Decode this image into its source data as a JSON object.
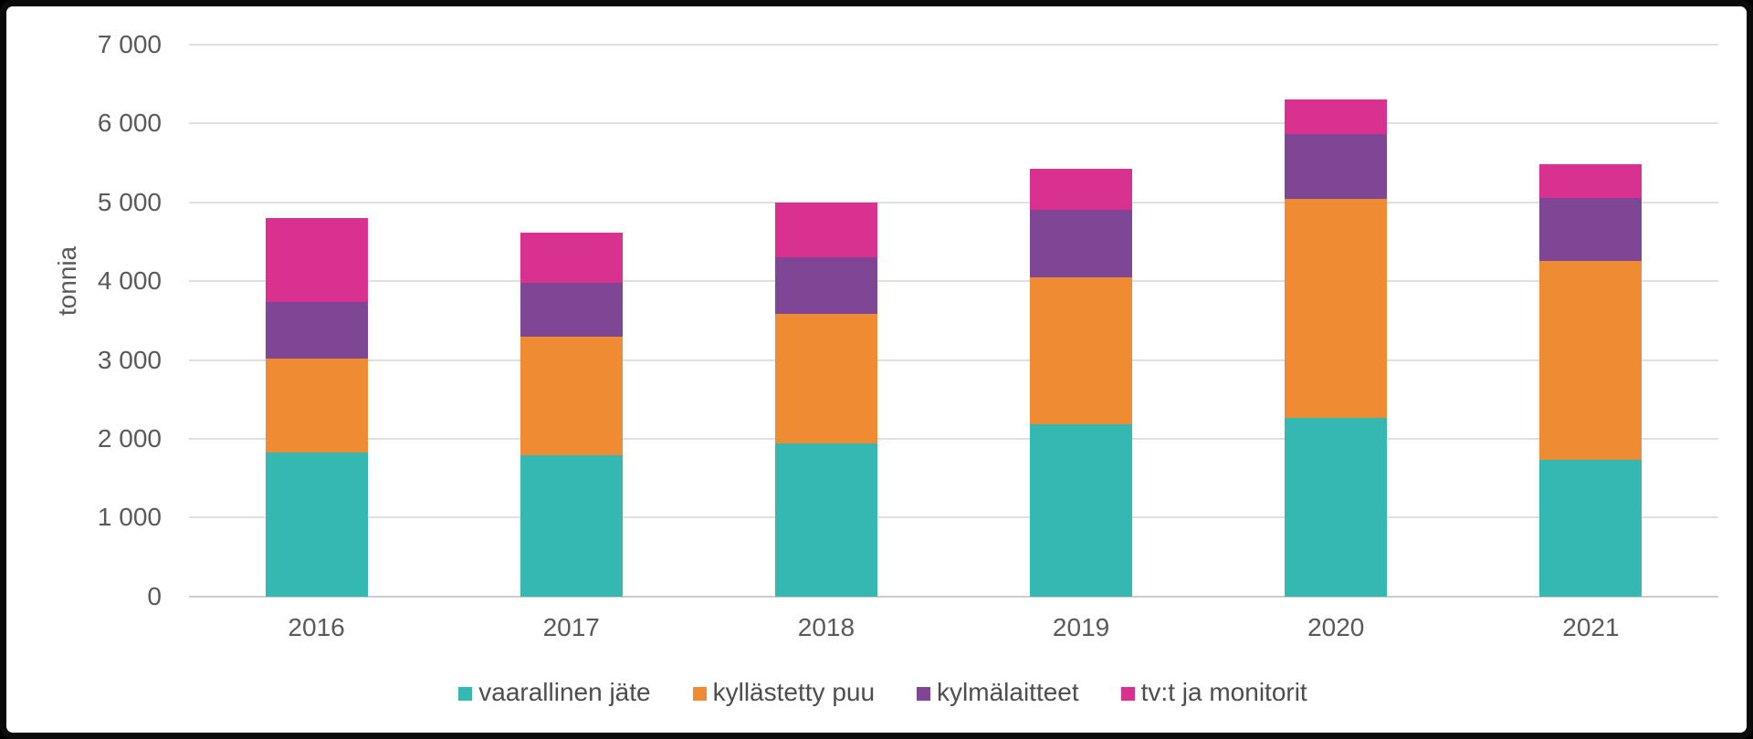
{
  "chart_data": {
    "type": "bar",
    "stacked": true,
    "title": "",
    "ylabel": "tonnia",
    "xlabel": "",
    "grid": true,
    "legend_position": "bottom",
    "ylim": [
      0,
      7000
    ],
    "ytick_step": 1000,
    "ytick_labels": [
      "0",
      "1 000",
      "2 000",
      "3 000",
      "4 000",
      "5 000",
      "6 000",
      "7 000"
    ],
    "categories": [
      "2016",
      "2017",
      "2018",
      "2019",
      "2020",
      "2021"
    ],
    "series": [
      {
        "name": "vaarallinen jäte",
        "color": "#35b8b1",
        "values": [
          1820,
          1790,
          1940,
          2190,
          2270,
          1730
        ]
      },
      {
        "name": "kyllästetty puu",
        "color": "#ef8b33",
        "values": [
          1200,
          1500,
          1640,
          1860,
          2770,
          2530
        ]
      },
      {
        "name": "kylmälaitteet",
        "color": "#7f4696",
        "values": [
          710,
          690,
          720,
          850,
          820,
          800
        ]
      },
      {
        "name": "tv:t ja monitorit",
        "color": "#d93190",
        "values": [
          1070,
          640,
          700,
          520,
          450,
          420
        ]
      }
    ],
    "totals": [
      4800,
      4620,
      5000,
      5420,
      6310,
      5480
    ],
    "colors": {
      "tick_text": "#595959",
      "legend_text": "#4d4d4d",
      "gridline": "#e0e0e0",
      "axisline": "#cccccc",
      "frame_border": "#0b0b0b",
      "background": "#ffffff"
    }
  }
}
